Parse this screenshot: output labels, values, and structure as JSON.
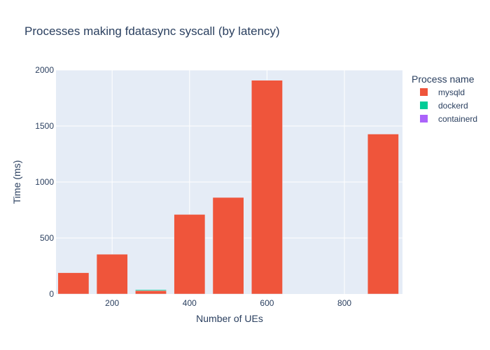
{
  "chart_data": {
    "type": "bar",
    "barmode": "stack",
    "title": "Processes making fdatasync syscall (by latency)",
    "xlabel": "Number of UEs",
    "ylabel": "Time (ms)",
    "xlim": [
      55,
      950
    ],
    "ylim": [
      0,
      2000
    ],
    "x_ticks": [
      200,
      400,
      600,
      800
    ],
    "y_ticks": [
      0,
      500,
      1000,
      1500,
      2000
    ],
    "bar_width": 80,
    "x": [
      100,
      200,
      300,
      400,
      500,
      600,
      900
    ],
    "series": [
      {
        "name": "mysqld",
        "color": "#EF553B",
        "values": [
          190,
          355,
          30,
          710,
          862,
          1908,
          1428
        ]
      },
      {
        "name": "dockerd",
        "color": "#00CC96",
        "values": [
          0,
          0,
          8,
          0,
          0,
          0,
          0
        ]
      },
      {
        "name": "containerd",
        "color": "#AB63FA",
        "values": [
          0,
          0,
          0,
          0,
          0,
          0,
          0
        ]
      }
    ],
    "legend": {
      "title": "Process name",
      "position": "top-right"
    },
    "grid": true,
    "background": "#E5ECF6"
  }
}
